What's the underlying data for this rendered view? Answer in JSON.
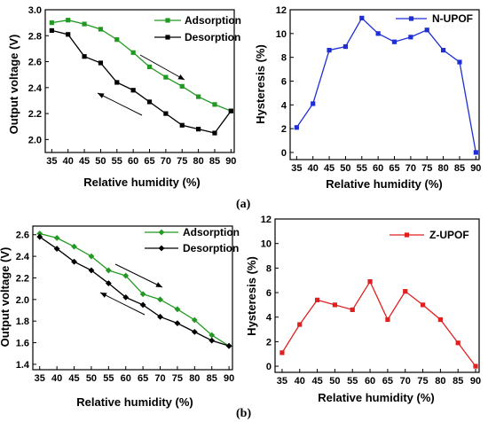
{
  "panel_labels": [
    "(a)",
    "(b)"
  ],
  "chart_data": [
    {
      "type": "line",
      "x": [
        35,
        40,
        45,
        50,
        55,
        60,
        65,
        70,
        75,
        80,
        85,
        90
      ],
      "xlabel": "Relative humidity (%)",
      "ylabel": "Output voltage (V)",
      "xlim": [
        33,
        91
      ],
      "ylim": [
        1.9,
        3.0
      ],
      "xticks": [
        35,
        40,
        45,
        50,
        55,
        60,
        65,
        70,
        75,
        80,
        85,
        90
      ],
      "yticks": [
        "2.0",
        "2.2",
        "2.4",
        "2.6",
        "2.8",
        "3.0"
      ],
      "legend_position": "top-right",
      "series": [
        {
          "name": "Adsorption",
          "color": "#229922",
          "marker": "square",
          "values": [
            2.9,
            2.92,
            2.89,
            2.85,
            2.77,
            2.67,
            2.56,
            2.48,
            2.41,
            2.33,
            2.27,
            2.22
          ]
        },
        {
          "name": "Desorption",
          "color": "#000000",
          "marker": "square",
          "values": [
            2.84,
            2.81,
            2.64,
            2.59,
            2.44,
            2.38,
            2.29,
            2.2,
            2.11,
            2.08,
            2.05,
            2.22
          ]
        }
      ],
      "arrows": [
        "down-right",
        "up-left"
      ]
    },
    {
      "type": "line",
      "x": [
        35,
        40,
        45,
        50,
        55,
        60,
        65,
        70,
        75,
        80,
        85,
        90
      ],
      "xlabel": "Relative humidity (%)",
      "ylabel": "Hysteresis (%)",
      "xlim": [
        33,
        91
      ],
      "ylim": [
        -0.6,
        12
      ],
      "xticks": [
        35,
        40,
        45,
        50,
        55,
        60,
        65,
        70,
        75,
        80,
        85,
        90
      ],
      "yticks": [
        "0",
        "2",
        "4",
        "6",
        "8",
        "10",
        "12"
      ],
      "legend_position": "top-right",
      "series": [
        {
          "name": "N-UPOF",
          "color": "#1f2fd6",
          "marker": "square",
          "values": [
            2.1,
            4.1,
            8.6,
            8.9,
            11.3,
            10.0,
            9.3,
            9.7,
            10.3,
            8.6,
            7.6,
            0.0
          ]
        }
      ]
    },
    {
      "type": "line",
      "x": [
        35,
        40,
        45,
        50,
        55,
        60,
        65,
        70,
        75,
        80,
        85,
        90
      ],
      "xlabel": "Relative humidity (%)",
      "ylabel": "Output voltage (V)",
      "xlim": [
        33,
        91
      ],
      "ylim": [
        1.35,
        2.68
      ],
      "xticks": [
        35,
        40,
        45,
        50,
        55,
        60,
        65,
        70,
        75,
        80,
        85,
        90
      ],
      "yticks": [
        "1.4",
        "1.6",
        "1.8",
        "2.0",
        "2.2",
        "2.4",
        "2.6"
      ],
      "legend_position": "top-right",
      "series": [
        {
          "name": "Adsorption",
          "color": "#229922",
          "marker": "diamond",
          "values": [
            2.61,
            2.57,
            2.49,
            2.4,
            2.27,
            2.22,
            2.05,
            2.0,
            1.91,
            1.81,
            1.67,
            1.57
          ]
        },
        {
          "name": "Desorption",
          "color": "#000000",
          "marker": "diamond",
          "values": [
            2.58,
            2.47,
            2.35,
            2.27,
            2.15,
            2.02,
            1.95,
            1.84,
            1.78,
            1.7,
            1.62,
            1.57
          ]
        }
      ],
      "arrows": [
        "down-right",
        "up-left"
      ]
    },
    {
      "type": "line",
      "x": [
        35,
        40,
        45,
        50,
        55,
        60,
        65,
        70,
        75,
        80,
        85,
        90
      ],
      "xlabel": "Relative humidity (%)",
      "ylabel": "Hysteresis (%)",
      "xlim": [
        33,
        91
      ],
      "ylim": [
        -0.5,
        12
      ],
      "xticks": [
        35,
        40,
        45,
        50,
        55,
        60,
        65,
        70,
        75,
        80,
        85,
        90
      ],
      "yticks": [
        "0",
        "2",
        "4",
        "6",
        "8",
        "10",
        "12"
      ],
      "legend_position": "top-right",
      "series": [
        {
          "name": "Z-UPOF",
          "color": "#e02020",
          "marker": "square",
          "values": [
            1.1,
            3.4,
            5.4,
            5.0,
            4.6,
            6.9,
            3.8,
            6.1,
            5.0,
            3.8,
            1.9,
            0.0
          ]
        }
      ]
    }
  ]
}
